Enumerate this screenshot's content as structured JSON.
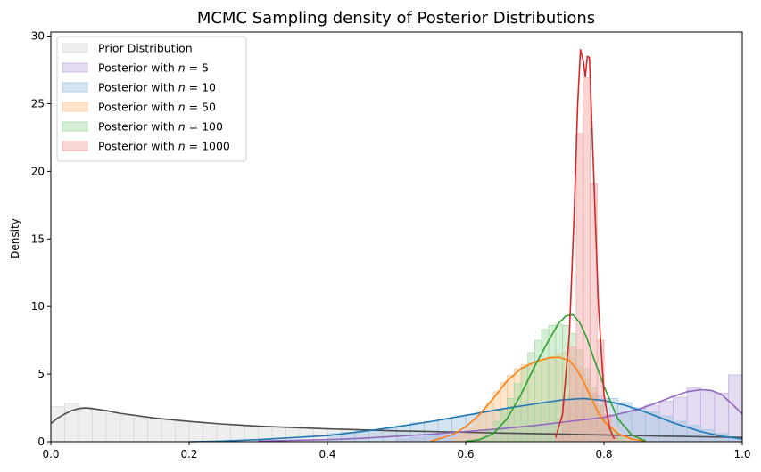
{
  "chart_data": {
    "type": "histogram-kde",
    "title": "MCMC Sampling density of Posterior Distributions",
    "xlabel": "",
    "ylabel": "Density",
    "xlim": [
      0,
      1
    ],
    "ylim": [
      0,
      30.3
    ],
    "xticks": [
      0.0,
      0.2,
      0.4,
      0.6,
      0.8,
      1.0
    ],
    "xtick_labels": [
      "0.0",
      "0.2",
      "0.4",
      "0.6",
      "0.8",
      "1.0"
    ],
    "yticks": [
      0,
      5,
      10,
      15,
      20,
      25,
      30
    ],
    "ytick_labels": [
      "0",
      "5",
      "10",
      "15",
      "20",
      "25",
      "30"
    ],
    "grid": false,
    "legend_position": "top-left",
    "series": [
      {
        "legend_prefix": "Prior Distribution",
        "legend_n": "",
        "color": "#4d4d4d",
        "fill": "#d9d9d9",
        "bin_width": 0.02,
        "bins": [
          [
            0.0,
            2.6
          ],
          [
            0.02,
            2.85
          ],
          [
            0.04,
            2.55
          ],
          [
            0.06,
            2.3
          ],
          [
            0.08,
            2.1
          ],
          [
            0.1,
            1.95
          ],
          [
            0.12,
            1.8
          ],
          [
            0.14,
            1.7
          ],
          [
            0.16,
            1.6
          ],
          [
            0.18,
            1.5
          ],
          [
            0.2,
            1.45
          ],
          [
            0.22,
            1.35
          ],
          [
            0.24,
            1.3
          ],
          [
            0.26,
            1.25
          ],
          [
            0.28,
            1.2
          ],
          [
            0.3,
            1.15
          ],
          [
            0.32,
            1.1
          ],
          [
            0.34,
            1.05
          ],
          [
            0.36,
            1.0
          ],
          [
            0.38,
            0.98
          ],
          [
            0.4,
            0.95
          ],
          [
            0.42,
            0.9
          ],
          [
            0.44,
            0.87
          ],
          [
            0.46,
            0.85
          ],
          [
            0.48,
            0.82
          ],
          [
            0.5,
            0.8
          ],
          [
            0.52,
            0.78
          ],
          [
            0.54,
            0.75
          ],
          [
            0.56,
            0.72
          ],
          [
            0.58,
            0.7
          ],
          [
            0.6,
            0.68
          ],
          [
            0.62,
            0.66
          ],
          [
            0.64,
            0.64
          ],
          [
            0.66,
            0.62
          ],
          [
            0.68,
            0.6
          ],
          [
            0.7,
            0.58
          ],
          [
            0.72,
            0.56
          ],
          [
            0.74,
            0.54
          ],
          [
            0.76,
            0.52
          ],
          [
            0.78,
            0.5
          ],
          [
            0.8,
            0.48
          ],
          [
            0.82,
            0.46
          ],
          [
            0.84,
            0.44
          ],
          [
            0.86,
            0.42
          ],
          [
            0.88,
            0.4
          ],
          [
            0.9,
            0.38
          ],
          [
            0.92,
            0.36
          ],
          [
            0.94,
            0.34
          ],
          [
            0.96,
            0.32
          ],
          [
            0.98,
            0.3
          ]
        ],
        "kde": [
          [
            0.0,
            1.35
          ],
          [
            0.01,
            1.75
          ],
          [
            0.02,
            2.05
          ],
          [
            0.03,
            2.3
          ],
          [
            0.04,
            2.45
          ],
          [
            0.05,
            2.5
          ],
          [
            0.06,
            2.45
          ],
          [
            0.08,
            2.3
          ],
          [
            0.1,
            2.1
          ],
          [
            0.15,
            1.75
          ],
          [
            0.2,
            1.5
          ],
          [
            0.25,
            1.3
          ],
          [
            0.3,
            1.15
          ],
          [
            0.35,
            1.05
          ],
          [
            0.4,
            0.95
          ],
          [
            0.45,
            0.88
          ],
          [
            0.5,
            0.8
          ],
          [
            0.55,
            0.75
          ],
          [
            0.6,
            0.7
          ],
          [
            0.65,
            0.64
          ],
          [
            0.7,
            0.6
          ],
          [
            0.75,
            0.55
          ],
          [
            0.8,
            0.5
          ],
          [
            0.85,
            0.45
          ],
          [
            0.9,
            0.4
          ],
          [
            0.95,
            0.36
          ],
          [
            1.0,
            0.32
          ]
        ]
      },
      {
        "legend_prefix": "Posterior with ",
        "legend_n": "5",
        "color": "#9467bd",
        "fill": "#c5b0e0",
        "bin_width": 0.02,
        "bins": [
          [
            0.5,
            0.2
          ],
          [
            0.52,
            0.3
          ],
          [
            0.54,
            0.4
          ],
          [
            0.56,
            0.5
          ],
          [
            0.58,
            0.6
          ],
          [
            0.6,
            0.7
          ],
          [
            0.62,
            0.8
          ],
          [
            0.64,
            0.9
          ],
          [
            0.66,
            1.0
          ],
          [
            0.68,
            1.1
          ],
          [
            0.7,
            1.2
          ],
          [
            0.72,
            1.3
          ],
          [
            0.74,
            1.4
          ],
          [
            0.76,
            1.5
          ],
          [
            0.78,
            1.7
          ],
          [
            0.8,
            1.9
          ],
          [
            0.82,
            2.1
          ],
          [
            0.84,
            2.4
          ],
          [
            0.86,
            2.7
          ],
          [
            0.88,
            3.0
          ],
          [
            0.9,
            3.3
          ],
          [
            0.92,
            4.0
          ],
          [
            0.94,
            3.7
          ],
          [
            0.96,
            3.6
          ],
          [
            0.98,
            4.95
          ]
        ],
        "kde": [
          [
            0.3,
            0.05
          ],
          [
            0.4,
            0.15
          ],
          [
            0.45,
            0.25
          ],
          [
            0.5,
            0.4
          ],
          [
            0.55,
            0.55
          ],
          [
            0.6,
            0.75
          ],
          [
            0.65,
            0.95
          ],
          [
            0.7,
            1.2
          ],
          [
            0.75,
            1.5
          ],
          [
            0.8,
            1.8
          ],
          [
            0.85,
            2.4
          ],
          [
            0.88,
            2.95
          ],
          [
            0.9,
            3.35
          ],
          [
            0.92,
            3.7
          ],
          [
            0.94,
            3.85
          ],
          [
            0.955,
            3.8
          ],
          [
            0.97,
            3.5
          ],
          [
            0.985,
            2.8
          ],
          [
            1.0,
            2.05
          ]
        ]
      },
      {
        "legend_prefix": "Posterior with ",
        "legend_n": "10",
        "color": "#1f77b4",
        "fill": "#9fc6e0",
        "bin_width": 0.02,
        "bins": [
          [
            0.4,
            0.6
          ],
          [
            0.42,
            0.7
          ],
          [
            0.44,
            0.8
          ],
          [
            0.46,
            0.9
          ],
          [
            0.48,
            1.0
          ],
          [
            0.5,
            1.2
          ],
          [
            0.52,
            1.4
          ],
          [
            0.54,
            1.5
          ],
          [
            0.56,
            1.6
          ],
          [
            0.58,
            1.8
          ],
          [
            0.6,
            2.0
          ],
          [
            0.62,
            2.2
          ],
          [
            0.64,
            2.4
          ],
          [
            0.66,
            2.6
          ],
          [
            0.68,
            2.7
          ],
          [
            0.7,
            2.9
          ],
          [
            0.72,
            3.0
          ],
          [
            0.74,
            3.4
          ],
          [
            0.76,
            3.3
          ],
          [
            0.78,
            3.4
          ],
          [
            0.8,
            3.2
          ],
          [
            0.82,
            2.9
          ],
          [
            0.84,
            2.5
          ],
          [
            0.86,
            2.2
          ],
          [
            0.88,
            1.9
          ],
          [
            0.9,
            1.5
          ],
          [
            0.92,
            1.2
          ],
          [
            0.94,
            0.9
          ],
          [
            0.96,
            0.6
          ],
          [
            0.98,
            0.3
          ]
        ],
        "kde": [
          [
            0.2,
            0.0
          ],
          [
            0.25,
            0.05
          ],
          [
            0.3,
            0.15
          ],
          [
            0.35,
            0.3
          ],
          [
            0.4,
            0.45
          ],
          [
            0.45,
            0.75
          ],
          [
            0.5,
            1.1
          ],
          [
            0.55,
            1.5
          ],
          [
            0.6,
            1.95
          ],
          [
            0.65,
            2.4
          ],
          [
            0.7,
            2.8
          ],
          [
            0.74,
            3.1
          ],
          [
            0.77,
            3.2
          ],
          [
            0.8,
            3.05
          ],
          [
            0.83,
            2.7
          ],
          [
            0.86,
            2.2
          ],
          [
            0.9,
            1.4
          ],
          [
            0.94,
            0.75
          ],
          [
            0.97,
            0.4
          ],
          [
            1.0,
            0.2
          ]
        ]
      },
      {
        "legend_prefix": "Posterior with ",
        "legend_n": "50",
        "color": "#ff7f0e",
        "fill": "#ffc58f",
        "bin_width": 0.01,
        "bins": [
          [
            0.58,
            0.3
          ],
          [
            0.59,
            0.6
          ],
          [
            0.6,
            1.0
          ],
          [
            0.61,
            1.6
          ],
          [
            0.62,
            2.2
          ],
          [
            0.63,
            2.9
          ],
          [
            0.64,
            3.7
          ],
          [
            0.65,
            4.4
          ],
          [
            0.66,
            4.9
          ],
          [
            0.67,
            5.4
          ],
          [
            0.68,
            5.7
          ],
          [
            0.69,
            5.8
          ],
          [
            0.7,
            5.9
          ],
          [
            0.71,
            6.1
          ],
          [
            0.72,
            6.3
          ],
          [
            0.73,
            6.5
          ],
          [
            0.74,
            6.6
          ],
          [
            0.75,
            6.2
          ],
          [
            0.76,
            5.5
          ],
          [
            0.77,
            4.6
          ],
          [
            0.78,
            3.6
          ],
          [
            0.79,
            2.6
          ],
          [
            0.8,
            1.7
          ],
          [
            0.81,
            1.0
          ],
          [
            0.82,
            0.5
          ],
          [
            0.83,
            0.2
          ]
        ],
        "kde": [
          [
            0.55,
            0.05
          ],
          [
            0.58,
            0.5
          ],
          [
            0.6,
            1.1
          ],
          [
            0.62,
            2.0
          ],
          [
            0.64,
            3.2
          ],
          [
            0.66,
            4.5
          ],
          [
            0.68,
            5.4
          ],
          [
            0.7,
            5.9
          ],
          [
            0.72,
            6.2
          ],
          [
            0.735,
            6.25
          ],
          [
            0.75,
            6.0
          ],
          [
            0.76,
            5.4
          ],
          [
            0.77,
            4.5
          ],
          [
            0.78,
            3.4
          ],
          [
            0.79,
            2.3
          ],
          [
            0.8,
            1.5
          ],
          [
            0.82,
            0.6
          ],
          [
            0.84,
            0.2
          ],
          [
            0.86,
            0.05
          ]
        ]
      },
      {
        "legend_prefix": "Posterior with ",
        "legend_n": "100",
        "color": "#2ca02c",
        "fill": "#a3d9a3",
        "bin_width": 0.01,
        "bins": [
          [
            0.62,
            0.3
          ],
          [
            0.63,
            0.8
          ],
          [
            0.64,
            1.5
          ],
          [
            0.65,
            2.3
          ],
          [
            0.66,
            3.2
          ],
          [
            0.67,
            4.3
          ],
          [
            0.68,
            5.5
          ],
          [
            0.69,
            6.6
          ],
          [
            0.7,
            7.5
          ],
          [
            0.71,
            8.3
          ],
          [
            0.72,
            8.6
          ],
          [
            0.73,
            8.7
          ],
          [
            0.74,
            8.6
          ],
          [
            0.75,
            8.0
          ],
          [
            0.76,
            6.8
          ],
          [
            0.77,
            5.4
          ],
          [
            0.78,
            4.0
          ],
          [
            0.79,
            2.7
          ],
          [
            0.8,
            1.6
          ],
          [
            0.81,
            0.8
          ],
          [
            0.82,
            0.3
          ]
        ],
        "kde": [
          [
            0.6,
            0.02
          ],
          [
            0.62,
            0.15
          ],
          [
            0.64,
            0.6
          ],
          [
            0.66,
            1.7
          ],
          [
            0.68,
            3.5
          ],
          [
            0.7,
            5.6
          ],
          [
            0.72,
            7.5
          ],
          [
            0.735,
            8.8
          ],
          [
            0.745,
            9.3
          ],
          [
            0.755,
            9.4
          ],
          [
            0.765,
            8.8
          ],
          [
            0.775,
            7.7
          ],
          [
            0.785,
            6.2
          ],
          [
            0.8,
            4.1
          ],
          [
            0.82,
            1.7
          ],
          [
            0.84,
            0.5
          ],
          [
            0.86,
            0.05
          ]
        ]
      },
      {
        "legend_prefix": "Posterior with ",
        "legend_n": "1000",
        "color": "#d62728",
        "fill": "#f2a3a4",
        "bin_width": 0.01,
        "bins": [
          [
            0.73,
            0.4
          ],
          [
            0.74,
            3.0
          ],
          [
            0.75,
            7.0
          ],
          [
            0.76,
            22.8
          ],
          [
            0.77,
            26.9
          ],
          [
            0.78,
            19.1
          ],
          [
            0.79,
            7.5
          ],
          [
            0.8,
            2.0
          ],
          [
            0.81,
            0.4
          ]
        ],
        "kde": [
          [
            0.73,
            0.3
          ],
          [
            0.74,
            2.0
          ],
          [
            0.75,
            8.0
          ],
          [
            0.757,
            17.0
          ],
          [
            0.762,
            25.0
          ],
          [
            0.766,
            29.0
          ],
          [
            0.77,
            28.2
          ],
          [
            0.773,
            27.0
          ],
          [
            0.776,
            28.5
          ],
          [
            0.779,
            28.4
          ],
          [
            0.785,
            20.0
          ],
          [
            0.792,
            10.0
          ],
          [
            0.8,
            3.5
          ],
          [
            0.808,
            1.0
          ],
          [
            0.815,
            0.2
          ]
        ]
      }
    ]
  }
}
